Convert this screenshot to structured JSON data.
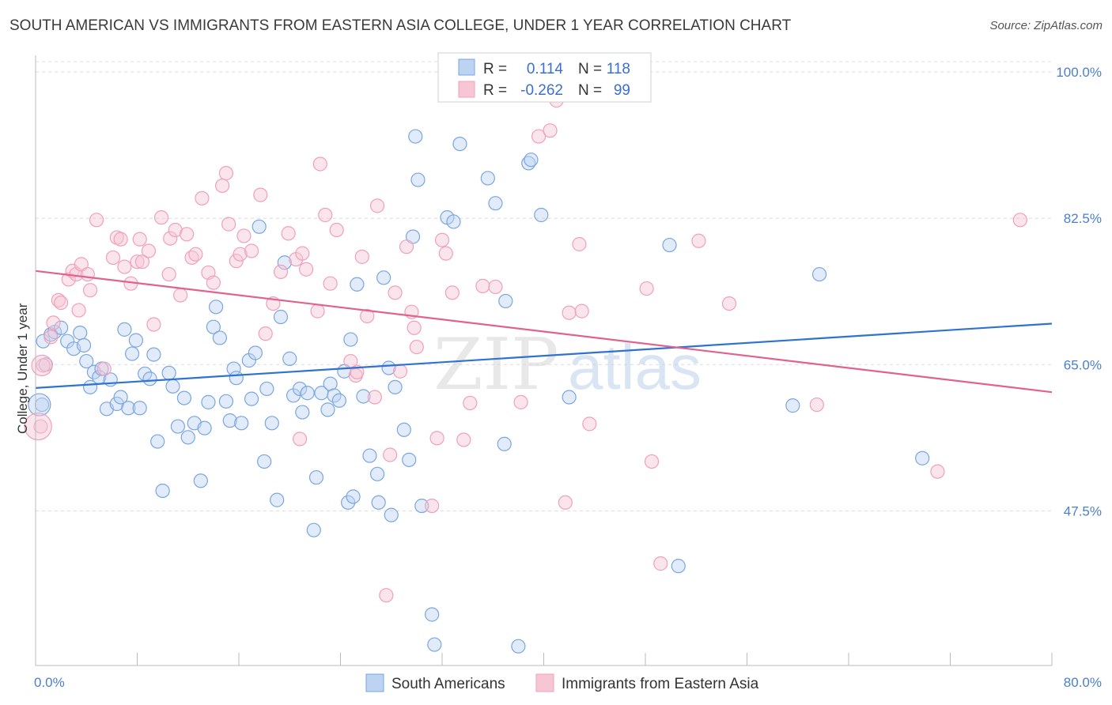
{
  "title": "SOUTH AMERICAN VS IMMIGRANTS FROM EASTERN ASIA COLLEGE, UNDER 1 YEAR CORRELATION CHART",
  "source": "Source: ZipAtlas.com",
  "watermark": {
    "zip": "ZIP",
    "atlas": "atlas"
  },
  "legend_box": {
    "rows": [
      {
        "r_label": "R =",
        "r_value": "0.114",
        "n_label": "N =",
        "n_value": "118"
      },
      {
        "r_label": "R =",
        "r_value": "-0.262",
        "n_label": "N =",
        "n_value": "99"
      }
    ]
  },
  "chart_data": {
    "type": "scatter",
    "title": "SOUTH AMERICAN VS IMMIGRANTS FROM EASTERN ASIA COLLEGE, UNDER 1 YEAR CORRELATION CHART",
    "xlabel": "",
    "ylabel": "College, Under 1 year",
    "xlim": [
      0,
      80
    ],
    "ylim": [
      29,
      102
    ],
    "x_tick_labels": [
      "0.0%",
      "80.0%"
    ],
    "y_ticks": [
      47.5,
      65.0,
      82.5,
      100.0
    ],
    "y_tick_labels": [
      "47.5%",
      "65.0%",
      "82.5%",
      "100.0%"
    ],
    "grid": true,
    "legend": "top-center",
    "series": [
      {
        "name": "South Americans",
        "color": "#7aa6e0",
        "line_color": "#2f72d0",
        "trend": {
          "x": [
            0,
            80
          ],
          "y": [
            62.2,
            69.9
          ]
        },
        "points": [
          [
            0.5,
            60.2
          ],
          [
            0.6,
            67.8
          ],
          [
            0.8,
            65.0
          ],
          [
            1.2,
            68.6
          ],
          [
            1.5,
            68.9
          ],
          [
            2.0,
            69.4
          ],
          [
            2.5,
            67.8
          ],
          [
            3.0,
            66.9
          ],
          [
            3.5,
            68.8
          ],
          [
            3.8,
            67.3
          ],
          [
            4.0,
            65.4
          ],
          [
            4.3,
            62.3
          ],
          [
            4.6,
            64.1
          ],
          [
            5.0,
            63.5
          ],
          [
            5.2,
            64.5
          ],
          [
            5.6,
            59.7
          ],
          [
            5.9,
            63.2
          ],
          [
            6.4,
            60.3
          ],
          [
            6.7,
            61.1
          ],
          [
            7.0,
            69.2
          ],
          [
            7.3,
            59.8
          ],
          [
            7.6,
            66.3
          ],
          [
            7.9,
            67.9
          ],
          [
            8.2,
            59.8
          ],
          [
            8.6,
            63.9
          ],
          [
            9.0,
            63.3
          ],
          [
            9.3,
            66.2
          ],
          [
            9.6,
            55.8
          ],
          [
            10.0,
            49.9
          ],
          [
            10.5,
            64.0
          ],
          [
            10.8,
            62.4
          ],
          [
            11.2,
            57.6
          ],
          [
            11.7,
            61.0
          ],
          [
            12.0,
            56.3
          ],
          [
            12.5,
            58.0
          ],
          [
            13.0,
            51.1
          ],
          [
            13.3,
            57.4
          ],
          [
            13.6,
            60.5
          ],
          [
            14.0,
            69.5
          ],
          [
            14.2,
            71.9
          ],
          [
            14.5,
            68.2
          ],
          [
            15.0,
            60.6
          ],
          [
            15.3,
            58.3
          ],
          [
            15.6,
            64.5
          ],
          [
            15.8,
            63.4
          ],
          [
            16.2,
            58.0
          ],
          [
            16.8,
            65.5
          ],
          [
            17.0,
            60.9
          ],
          [
            17.3,
            66.4
          ],
          [
            17.6,
            81.5
          ],
          [
            18.0,
            53.4
          ],
          [
            18.2,
            62.1
          ],
          [
            18.6,
            58.0
          ],
          [
            19.0,
            48.8
          ],
          [
            19.3,
            70.7
          ],
          [
            19.6,
            77.2
          ],
          [
            20.0,
            65.7
          ],
          [
            20.3,
            61.3
          ],
          [
            20.8,
            62.1
          ],
          [
            21.0,
            59.3
          ],
          [
            21.4,
            61.6
          ],
          [
            21.9,
            45.2
          ],
          [
            22.1,
            51.5
          ],
          [
            22.5,
            61.6
          ],
          [
            23.0,
            59.6
          ],
          [
            23.2,
            62.7
          ],
          [
            23.5,
            61.3
          ],
          [
            23.9,
            60.7
          ],
          [
            24.3,
            64.2
          ],
          [
            24.6,
            48.5
          ],
          [
            24.8,
            68.0
          ],
          [
            25.0,
            49.2
          ],
          [
            25.3,
            74.6
          ],
          [
            25.8,
            61.2
          ],
          [
            26.3,
            54.1
          ],
          [
            26.9,
            51.9
          ],
          [
            27.0,
            48.5
          ],
          [
            27.4,
            75.4
          ],
          [
            27.8,
            64.6
          ],
          [
            28.0,
            47.0
          ],
          [
            28.3,
            62.3
          ],
          [
            29.0,
            57.2
          ],
          [
            29.4,
            53.6
          ],
          [
            29.7,
            80.3
          ],
          [
            29.9,
            92.3
          ],
          [
            30.1,
            87.1
          ],
          [
            30.4,
            48.1
          ],
          [
            31.2,
            35.1
          ],
          [
            31.4,
            31.5
          ],
          [
            32.4,
            82.6
          ],
          [
            32.9,
            82.1
          ],
          [
            33.4,
            91.4
          ],
          [
            35.6,
            87.3
          ],
          [
            36.2,
            84.3
          ],
          [
            36.9,
            55.5
          ],
          [
            37.0,
            72.6
          ],
          [
            38.0,
            31.3
          ],
          [
            38.8,
            89.1
          ],
          [
            39.0,
            89.5
          ],
          [
            39.8,
            82.9
          ],
          [
            42.0,
            61.1
          ],
          [
            49.9,
            79.3
          ],
          [
            50.6,
            40.9
          ],
          [
            59.6,
            60.1
          ],
          [
            61.7,
            75.8
          ],
          [
            69.8,
            53.8
          ]
        ]
      },
      {
        "name": "Immigrants from Eastern Asia",
        "color": "#f0a0b8",
        "line_color": "#e0628e",
        "trend": {
          "x": [
            0,
            80
          ],
          "y": [
            76.2,
            61.7
          ]
        },
        "points": [
          [
            0.4,
            57.6
          ],
          [
            0.6,
            64.9
          ],
          [
            1.2,
            68.3
          ],
          [
            1.4,
            70.0
          ],
          [
            1.8,
            72.7
          ],
          [
            2.0,
            72.4
          ],
          [
            2.6,
            75.2
          ],
          [
            2.9,
            76.2
          ],
          [
            3.2,
            75.8
          ],
          [
            3.4,
            71.5
          ],
          [
            3.6,
            77.0
          ],
          [
            4.1,
            75.8
          ],
          [
            4.3,
            73.9
          ],
          [
            4.8,
            82.3
          ],
          [
            5.4,
            64.5
          ],
          [
            6.1,
            77.8
          ],
          [
            6.4,
            80.2
          ],
          [
            6.7,
            80.0
          ],
          [
            7.0,
            76.7
          ],
          [
            7.5,
            74.7
          ],
          [
            8.0,
            77.3
          ],
          [
            8.2,
            80.0
          ],
          [
            8.4,
            77.3
          ],
          [
            8.9,
            78.6
          ],
          [
            9.3,
            69.8
          ],
          [
            9.9,
            82.6
          ],
          [
            10.5,
            75.8
          ],
          [
            10.6,
            80.1
          ],
          [
            11.0,
            81.1
          ],
          [
            11.4,
            73.3
          ],
          [
            11.9,
            80.6
          ],
          [
            12.3,
            77.8
          ],
          [
            12.6,
            78.2
          ],
          [
            13.1,
            84.9
          ],
          [
            13.6,
            76.0
          ],
          [
            14.0,
            74.8
          ],
          [
            14.7,
            86.4
          ],
          [
            15.0,
            87.9
          ],
          [
            15.2,
            81.8
          ],
          [
            15.8,
            77.4
          ],
          [
            16.1,
            78.2
          ],
          [
            16.4,
            80.4
          ],
          [
            17.0,
            78.6
          ],
          [
            17.7,
            85.3
          ],
          [
            18.1,
            68.7
          ],
          [
            18.7,
            72.3
          ],
          [
            19.3,
            76.1
          ],
          [
            19.9,
            80.7
          ],
          [
            20.5,
            77.6
          ],
          [
            20.8,
            56.1
          ],
          [
            21.0,
            78.3
          ],
          [
            21.3,
            76.4
          ],
          [
            22.2,
            71.4
          ],
          [
            22.4,
            89.0
          ],
          [
            22.8,
            82.9
          ],
          [
            23.2,
            74.7
          ],
          [
            23.7,
            81.1
          ],
          [
            24.8,
            65.4
          ],
          [
            25.2,
            63.7
          ],
          [
            25.3,
            64.1
          ],
          [
            25.7,
            77.9
          ],
          [
            26.1,
            70.8
          ],
          [
            26.7,
            61.1
          ],
          [
            26.9,
            84.0
          ],
          [
            27.6,
            37.4
          ],
          [
            27.9,
            54.2
          ],
          [
            28.3,
            73.6
          ],
          [
            28.7,
            64.2
          ],
          [
            29.2,
            79.1
          ],
          [
            29.6,
            71.3
          ],
          [
            29.8,
            69.4
          ],
          [
            30.0,
            67.1
          ],
          [
            31.2,
            48.1
          ],
          [
            31.6,
            56.2
          ],
          [
            32.0,
            79.9
          ],
          [
            32.3,
            78.3
          ],
          [
            32.8,
            73.6
          ],
          [
            33.7,
            56.0
          ],
          [
            34.2,
            60.4
          ],
          [
            35.2,
            74.4
          ],
          [
            36.2,
            74.3
          ],
          [
            38.2,
            60.5
          ],
          [
            39.6,
            92.3
          ],
          [
            40.5,
            93.0
          ],
          [
            41.0,
            96.6
          ],
          [
            41.7,
            48.5
          ],
          [
            42.0,
            71.2
          ],
          [
            42.8,
            79.4
          ],
          [
            43.0,
            71.4
          ],
          [
            43.6,
            57.9
          ],
          [
            48.1,
            74.1
          ],
          [
            48.5,
            53.4
          ],
          [
            49.2,
            41.2
          ],
          [
            52.2,
            79.8
          ],
          [
            54.6,
            72.3
          ],
          [
            61.5,
            60.2
          ],
          [
            71.0,
            52.2
          ],
          [
            77.5,
            82.3
          ]
        ]
      }
    ]
  }
}
